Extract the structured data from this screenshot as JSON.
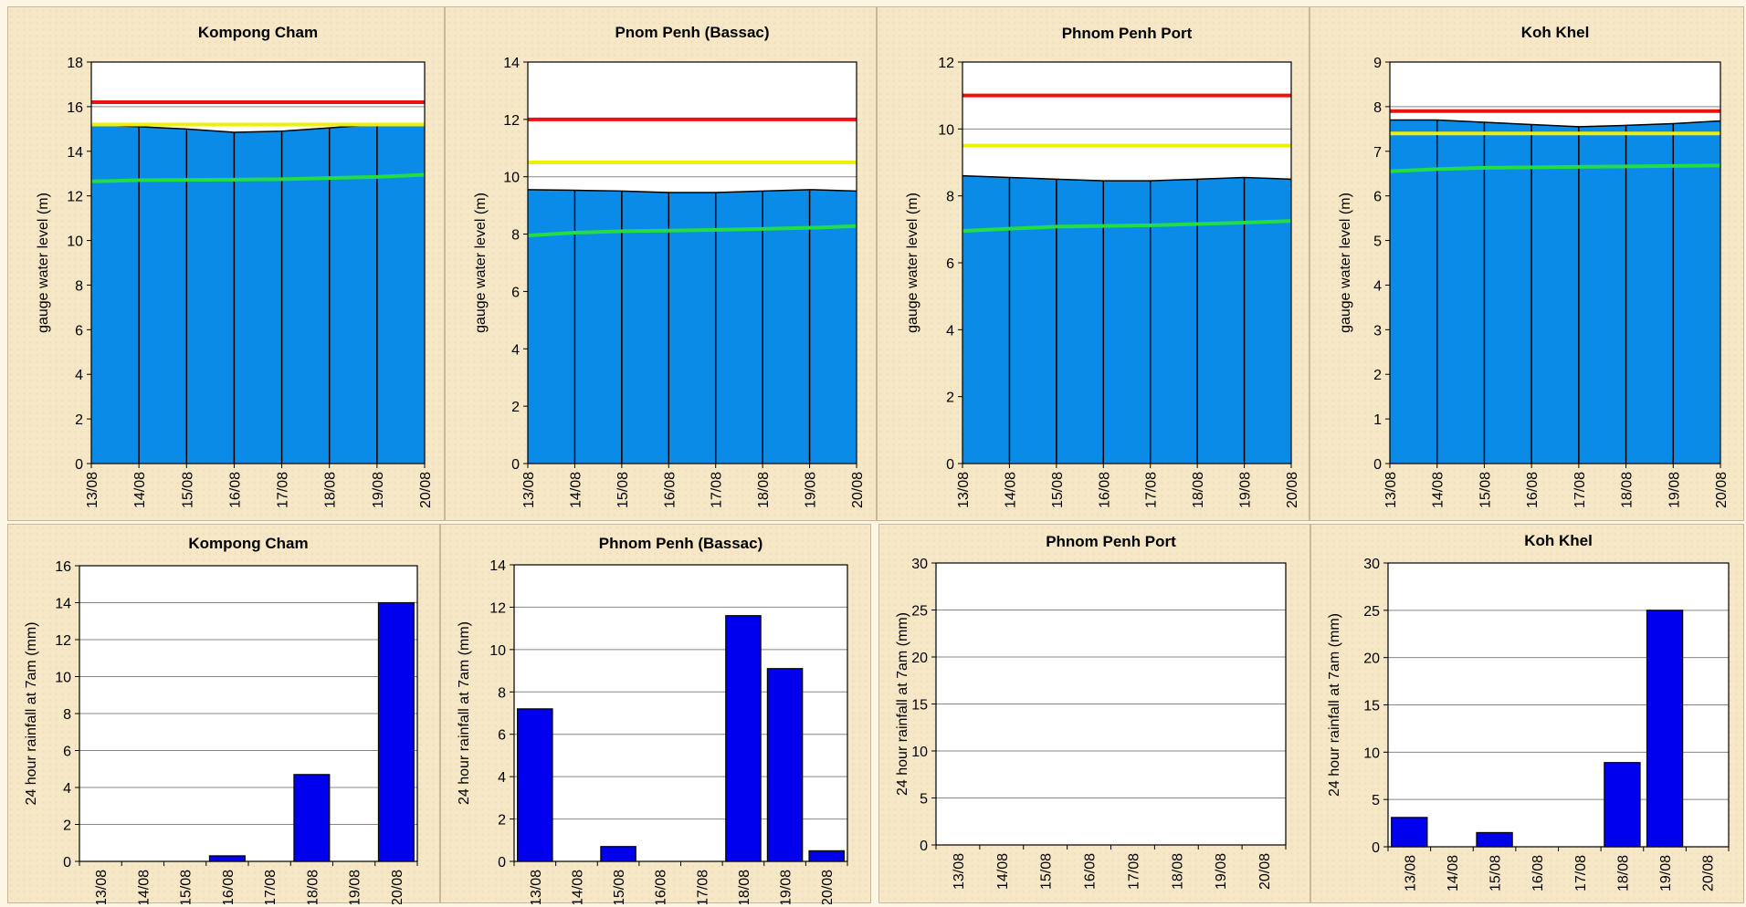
{
  "chart_data": [
    {
      "type": "area",
      "title": "Kompong Cham",
      "ylabel": "gauge  water level (m)",
      "ylim": [
        0,
        18
      ],
      "ystep": 2,
      "categories": [
        "13/08",
        "14/08",
        "15/08",
        "16/08",
        "17/08",
        "18/08",
        "19/08",
        "20/08"
      ],
      "series": [
        {
          "kind": "area",
          "color": "#0b8be8",
          "values": [
            15.2,
            15.1,
            15.0,
            14.85,
            14.9,
            15.05,
            15.2,
            15.2
          ]
        },
        {
          "kind": "line",
          "color": "#ee1111",
          "values": [
            16.2,
            16.2,
            16.2,
            16.2,
            16.2,
            16.2,
            16.2,
            16.2
          ]
        },
        {
          "kind": "line",
          "color": "#eef000",
          "values": [
            15.2,
            15.2,
            15.2,
            15.2,
            15.2,
            15.2,
            15.2,
            15.2
          ]
        },
        {
          "kind": "line",
          "color": "#22dd44",
          "values": [
            12.65,
            12.7,
            12.72,
            12.73,
            12.75,
            12.8,
            12.85,
            12.95
          ]
        }
      ]
    },
    {
      "type": "area",
      "title": "Pnom Penh (Bassac)",
      "ylabel": "gauge  water level (m)",
      "ylim": [
        0,
        14
      ],
      "ystep": 2,
      "categories": [
        "13/08",
        "14/08",
        "15/08",
        "16/08",
        "17/08",
        "18/08",
        "19/08",
        "20/08"
      ],
      "series": [
        {
          "kind": "area",
          "color": "#0b8be8",
          "values": [
            9.55,
            9.53,
            9.5,
            9.45,
            9.45,
            9.5,
            9.55,
            9.5
          ]
        },
        {
          "kind": "line",
          "color": "#ee1111",
          "values": [
            12.0,
            12.0,
            12.0,
            12.0,
            12.0,
            12.0,
            12.0,
            12.0
          ]
        },
        {
          "kind": "line",
          "color": "#eef000",
          "values": [
            10.5,
            10.5,
            10.5,
            10.5,
            10.5,
            10.5,
            10.5,
            10.5
          ]
        },
        {
          "kind": "line",
          "color": "#22dd44",
          "values": [
            7.95,
            8.05,
            8.1,
            8.12,
            8.15,
            8.18,
            8.22,
            8.28
          ]
        }
      ]
    },
    {
      "type": "area",
      "title": "Phnom Penh Port",
      "ylabel": "gauge  water level (m)",
      "ylim": [
        0,
        12
      ],
      "ystep": 2,
      "categories": [
        "13/08",
        "14/08",
        "15/08",
        "16/08",
        "17/08",
        "18/08",
        "19/08",
        "20/08"
      ],
      "series": [
        {
          "kind": "area",
          "color": "#0b8be8",
          "values": [
            8.6,
            8.55,
            8.5,
            8.45,
            8.45,
            8.5,
            8.55,
            8.5
          ]
        },
        {
          "kind": "line",
          "color": "#ee1111",
          "values": [
            11.0,
            11.0,
            11.0,
            11.0,
            11.0,
            11.0,
            11.0,
            11.0
          ]
        },
        {
          "kind": "line",
          "color": "#eef000",
          "values": [
            9.5,
            9.5,
            9.5,
            9.5,
            9.5,
            9.5,
            9.5,
            9.5
          ]
        },
        {
          "kind": "line",
          "color": "#22dd44",
          "values": [
            6.95,
            7.02,
            7.08,
            7.1,
            7.12,
            7.16,
            7.2,
            7.25
          ]
        }
      ]
    },
    {
      "type": "area",
      "title": "Koh Khel",
      "ylabel": "gauge  water level (m)",
      "ylim": [
        0,
        9
      ],
      "ystep": 1,
      "categories": [
        "13/08",
        "14/08",
        "15/08",
        "16/08",
        "17/08",
        "18/08",
        "19/08",
        "20/08"
      ],
      "series": [
        {
          "kind": "area",
          "color": "#0b8be8",
          "values": [
            7.7,
            7.7,
            7.65,
            7.6,
            7.55,
            7.58,
            7.62,
            7.68
          ]
        },
        {
          "kind": "line",
          "color": "#ee1111",
          "values": [
            7.9,
            7.9,
            7.9,
            7.9,
            7.9,
            7.9,
            7.9,
            7.9
          ]
        },
        {
          "kind": "line",
          "color": "#eef000",
          "values": [
            7.4,
            7.4,
            7.4,
            7.4,
            7.4,
            7.4,
            7.4,
            7.4
          ]
        },
        {
          "kind": "line",
          "color": "#22dd44",
          "values": [
            6.55,
            6.6,
            6.63,
            6.64,
            6.65,
            6.66,
            6.67,
            6.68
          ]
        }
      ]
    },
    {
      "type": "bar",
      "title": "Kompong Cham",
      "ylabel": "24 hour rainfall at 7am (mm)",
      "ylim": [
        0,
        16
      ],
      "ystep": 2,
      "color": "#0000ee",
      "categories": [
        "13/08",
        "14/08",
        "15/08",
        "16/08",
        "17/08",
        "18/08",
        "19/08",
        "20/08"
      ],
      "values": [
        0,
        0,
        0,
        0.3,
        0,
        4.7,
        0,
        14.0
      ]
    },
    {
      "type": "bar",
      "title": "Phnom Penh (Bassac)",
      "ylabel": "24 hour rainfall at 7am (mm)",
      "ylim": [
        0,
        14
      ],
      "ystep": 2,
      "color": "#0000ee",
      "categories": [
        "13/08",
        "14/08",
        "15/08",
        "16/08",
        "17/08",
        "18/08",
        "19/08",
        "20/08"
      ],
      "values": [
        7.2,
        0,
        0.7,
        0,
        0,
        11.6,
        9.1,
        0.5
      ]
    },
    {
      "type": "bar",
      "title": "Phnom Penh Port",
      "ylabel": "24 hour rainfall at 7am (mm)",
      "ylim": [
        0,
        30
      ],
      "ystep": 5,
      "color": "#0000ee",
      "categories": [
        "13/08",
        "14/08",
        "15/08",
        "16/08",
        "17/08",
        "18/08",
        "19/08",
        "20/08"
      ],
      "values": [
        0,
        0,
        0,
        0,
        0,
        0,
        0,
        0
      ]
    },
    {
      "type": "bar",
      "title": "Koh Khel",
      "ylabel": "24 hour rainfall at 7am (mm)",
      "ylim": [
        0,
        30
      ],
      "ystep": 5,
      "color": "#0000ee",
      "categories": [
        "13/08",
        "14/08",
        "15/08",
        "16/08",
        "17/08",
        "18/08",
        "19/08",
        "20/08"
      ],
      "values": [
        3.1,
        0,
        1.5,
        0,
        0,
        8.9,
        25.0,
        0
      ]
    }
  ]
}
